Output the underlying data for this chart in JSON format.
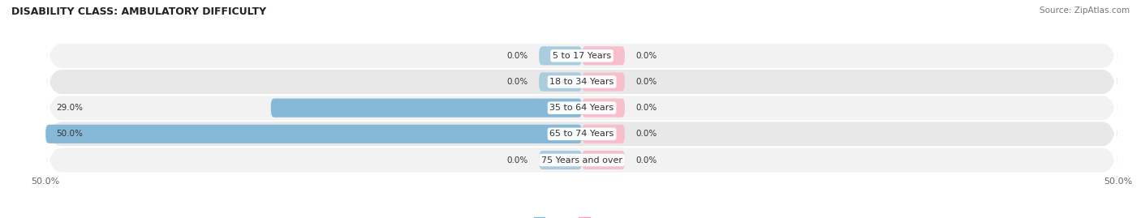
{
  "title": "DISABILITY CLASS: AMBULATORY DIFFICULTY",
  "source": "Source: ZipAtlas.com",
  "categories": [
    "5 to 17 Years",
    "18 to 34 Years",
    "35 to 64 Years",
    "65 to 74 Years",
    "75 Years and over"
  ],
  "male_values": [
    0.0,
    0.0,
    29.0,
    50.0,
    0.0
  ],
  "female_values": [
    0.0,
    0.0,
    0.0,
    0.0,
    0.0
  ],
  "x_max": 50.0,
  "x_min": -50.0,
  "male_color": "#88b8d8",
  "female_color": "#f4a0b5",
  "male_stub_color": "#aaccdd",
  "female_stub_color": "#f7bfcc",
  "row_bg_odd": "#f2f2f2",
  "row_bg_even": "#e8e8e8",
  "label_color": "#333333",
  "title_color": "#222222",
  "source_color": "#777777",
  "axis_label_color": "#666666",
  "legend_male_color": "#88b8d8",
  "legend_female_color": "#f4a0b5",
  "x_tick_labels": [
    "50.0%",
    "50.0%"
  ],
  "stub_size": 4.0,
  "bar_height": 0.72,
  "title_fontsize": 9,
  "label_fontsize": 8,
  "value_fontsize": 7.5,
  "axis_fontsize": 8,
  "legend_fontsize": 8
}
